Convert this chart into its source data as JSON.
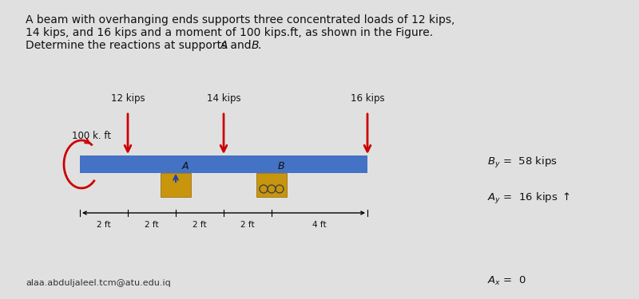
{
  "bg_color": "#e0e0e0",
  "beam_color": "#4472c4",
  "load_arrow_color": "#cc0000",
  "moment_arrow_color": "#cc0000",
  "support_color": "#c8960c",
  "title_line1": "A beam with overhanging ends supports three concentrated loads of 12 kips,",
  "title_line2": "14 kips, and 16 kips and a moment of 100 kips.ft, as shown in the Figure.",
  "title_line3": "Determine the reactions at supports A and B.",
  "load_12_label": "12 kips",
  "load_14_label": "14 kips",
  "load_16_label": "16 kips",
  "moment_label": "100 k. ft",
  "label_A": "A",
  "label_B": "B",
  "dim_labels": [
    "2 ft",
    "2 ft",
    "2 ft",
    "2 ft",
    "4 ft"
  ],
  "email": "alaa.abduljaleel.tcm@atu.edu.iq",
  "reaction_By": "$B_y$ =  58 kips",
  "reaction_Ay": "$A_y$ =  16 kips $\\uparrow$",
  "reaction_Ax": "$A_x$ =  0"
}
